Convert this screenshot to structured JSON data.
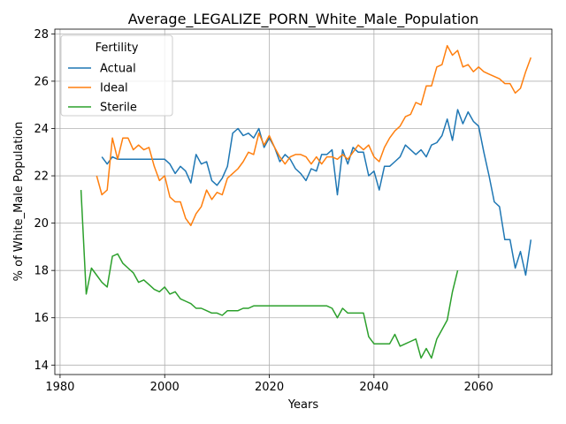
{
  "chart_data": {
    "type": "line",
    "title": "Average_LEGALIZE_PORN_White_Male_Population",
    "xlabel": "Years",
    "ylabel": "% of White_Male Population",
    "xlim": [
      1979,
      2074
    ],
    "ylim": [
      13.6,
      28.2
    ],
    "xticks": [
      1980,
      2000,
      2020,
      2040,
      2060
    ],
    "yticks": [
      14,
      16,
      18,
      20,
      22,
      24,
      26,
      28
    ],
    "grid": true,
    "legend": {
      "title": "Fertility",
      "placement": "top-left"
    },
    "series": [
      {
        "name": "Actual",
        "color": "#1f77b4",
        "x": [
          1988,
          1989,
          1990,
          1991,
          1992,
          1993,
          1994,
          1995,
          1996,
          1997,
          1998,
          1999,
          2000,
          2001,
          2002,
          2003,
          2004,
          2005,
          2006,
          2007,
          2008,
          2009,
          2010,
          2011,
          2012,
          2013,
          2014,
          2015,
          2016,
          2017,
          2018,
          2019,
          2020,
          2021,
          2022,
          2023,
          2024,
          2025,
          2026,
          2027,
          2028,
          2029,
          2030,
          2031,
          2032,
          2033,
          2034,
          2035,
          2036,
          2037,
          2038,
          2039,
          2040,
          2041,
          2042,
          2043,
          2044,
          2045,
          2046,
          2047,
          2048,
          2049,
          2050,
          2051,
          2052,
          2053,
          2054,
          2055,
          2056,
          2057,
          2058,
          2059,
          2060,
          2061,
          2062,
          2063,
          2064,
          2065,
          2066,
          2067,
          2068,
          2069,
          2070
        ],
        "values": [
          22.8,
          22.5,
          22.8,
          22.7,
          22.7,
          22.7,
          22.7,
          22.7,
          22.7,
          22.7,
          22.7,
          22.7,
          22.7,
          22.5,
          22.1,
          22.4,
          22.2,
          21.7,
          22.9,
          22.5,
          22.6,
          21.8,
          21.6,
          21.9,
          22.4,
          23.8,
          24.0,
          23.7,
          23.8,
          23.6,
          24.0,
          23.2,
          23.6,
          23.2,
          22.6,
          22.9,
          22.7,
          22.3,
          22.1,
          21.8,
          22.3,
          22.2,
          22.9,
          22.9,
          23.1,
          21.2,
          23.1,
          22.5,
          23.2,
          23.0,
          23.0,
          22.0,
          22.2,
          21.4,
          22.4,
          22.4,
          22.6,
          22.8,
          23.3,
          23.1,
          22.9,
          23.1,
          22.8,
          23.3,
          23.4,
          23.7,
          24.4,
          23.5,
          24.8,
          24.2,
          24.7,
          24.3,
          24.1,
          23.0,
          22.0,
          20.9,
          20.7,
          19.3,
          19.3,
          18.1,
          18.8,
          17.8,
          19.3
        ]
      },
      {
        "name": "Ideal",
        "color": "#ff7f0e",
        "x": [
          1987,
          1988,
          1989,
          1990,
          1991,
          1992,
          1993,
          1994,
          1995,
          1996,
          1997,
          1998,
          1999,
          2000,
          2001,
          2002,
          2003,
          2004,
          2005,
          2006,
          2007,
          2008,
          2009,
          2010,
          2011,
          2012,
          2013,
          2014,
          2015,
          2016,
          2017,
          2018,
          2019,
          2020,
          2021,
          2022,
          2023,
          2024,
          2025,
          2026,
          2027,
          2028,
          2029,
          2030,
          2031,
          2032,
          2033,
          2034,
          2035,
          2036,
          2037,
          2038,
          2039,
          2040,
          2041,
          2042,
          2043,
          2044,
          2045,
          2046,
          2047,
          2048,
          2049,
          2050,
          2051,
          2052,
          2053,
          2054,
          2055,
          2056,
          2057,
          2058,
          2059,
          2060,
          2061,
          2062,
          2063,
          2064,
          2065,
          2066,
          2067,
          2068,
          2069,
          2070
        ],
        "values": [
          22.0,
          21.2,
          21.4,
          23.6,
          22.7,
          23.6,
          23.6,
          23.1,
          23.3,
          23.1,
          23.2,
          22.4,
          21.8,
          22.0,
          21.1,
          20.9,
          20.9,
          20.2,
          19.9,
          20.4,
          20.7,
          21.4,
          21.0,
          21.3,
          21.2,
          21.9,
          22.1,
          22.3,
          22.6,
          23.0,
          22.9,
          23.8,
          23.3,
          23.7,
          23.2,
          22.8,
          22.5,
          22.8,
          22.9,
          22.9,
          22.8,
          22.5,
          22.8,
          22.5,
          22.8,
          22.8,
          22.7,
          22.9,
          22.7,
          23.0,
          23.3,
          23.1,
          23.3,
          22.8,
          22.6,
          23.2,
          23.6,
          23.9,
          24.1,
          24.5,
          24.6,
          25.1,
          25.0,
          25.8,
          25.8,
          26.6,
          26.7,
          27.5,
          27.1,
          27.3,
          26.6,
          26.7,
          26.4,
          26.6,
          26.4,
          26.3,
          26.2,
          26.1,
          25.9,
          25.9,
          25.5,
          25.7,
          26.4,
          27.0
        ]
      },
      {
        "name": "Sterile",
        "color": "#2ca02c",
        "x": [
          1984,
          1985,
          1986,
          1987,
          1988,
          1989,
          1990,
          1991,
          1992,
          1993,
          1994,
          1995,
          1996,
          1997,
          1998,
          1999,
          2000,
          2001,
          2002,
          2003,
          2004,
          2005,
          2006,
          2007,
          2008,
          2009,
          2010,
          2011,
          2012,
          2013,
          2014,
          2015,
          2016,
          2017,
          2018,
          2019,
          2020,
          2021,
          2022,
          2023,
          2024,
          2025,
          2026,
          2027,
          2028,
          2029,
          2030,
          2031,
          2032,
          2033,
          2034,
          2035,
          2036,
          2037,
          2038,
          2039,
          2040,
          2041,
          2042,
          2043,
          2044,
          2045,
          2046,
          2047,
          2048,
          2049,
          2050,
          2051,
          2052,
          2053,
          2054,
          2055,
          2056
        ],
        "values": [
          21.4,
          17.0,
          18.1,
          17.8,
          17.5,
          17.3,
          18.6,
          18.7,
          18.3,
          18.1,
          17.9,
          17.5,
          17.6,
          17.4,
          17.2,
          17.1,
          17.3,
          17.0,
          17.1,
          16.8,
          16.7,
          16.6,
          16.4,
          16.4,
          16.3,
          16.2,
          16.2,
          16.1,
          16.3,
          16.3,
          16.3,
          16.4,
          16.4,
          16.5,
          16.5,
          16.5,
          16.5,
          16.5,
          16.5,
          16.5,
          16.5,
          16.5,
          16.5,
          16.5,
          16.5,
          16.5,
          16.5,
          16.5,
          16.4,
          16.0,
          16.4,
          16.2,
          16.2,
          16.2,
          16.2,
          15.2,
          14.9,
          14.9,
          14.9,
          14.9,
          15.3,
          14.8,
          14.9,
          15.0,
          15.1,
          14.3,
          14.7,
          14.3,
          15.1,
          15.5,
          15.9,
          17.1,
          18.0
        ]
      }
    ]
  }
}
